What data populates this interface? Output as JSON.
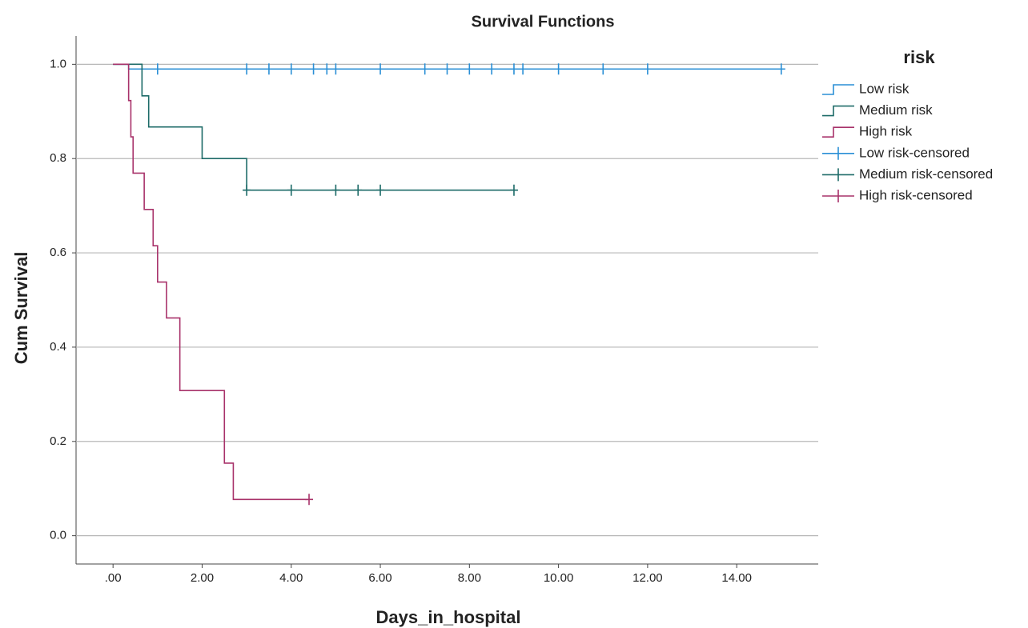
{
  "chart_data": {
    "type": "survival",
    "title": "Survival Functions",
    "x_label": "Days_in_hospital",
    "y_label": "Cum Survival",
    "legend_title": "risk",
    "legend": "right",
    "grid": true,
    "xlim": [
      -0.83,
      15.83
    ],
    "ylim": [
      -0.06,
      1.06
    ],
    "xticks": [
      {
        "value": 0,
        "label": ".00"
      },
      {
        "value": 2,
        "label": "2.00"
      },
      {
        "value": 4,
        "label": "4.00"
      },
      {
        "value": 6,
        "label": "6.00"
      },
      {
        "value": 8,
        "label": "8.00"
      },
      {
        "value": 10,
        "label": "10.00"
      },
      {
        "value": 12,
        "label": "12.00"
      },
      {
        "value": 14,
        "label": "14.00"
      }
    ],
    "yticks": [
      {
        "value": 0,
        "label": "0.0"
      },
      0.2,
      0.4,
      0.6,
      0.8,
      {
        "value": 1,
        "label": "1.0"
      }
    ],
    "series": [
      {
        "name": "Low risk",
        "kind": "step",
        "color": "#2a8fd6",
        "x": [
          0,
          0.35,
          15
        ],
        "values": [
          1.0,
          0.99,
          0.99
        ]
      },
      {
        "name": "Medium risk",
        "kind": "step",
        "color": "#1d6b68",
        "x": [
          0,
          0.65,
          0.8,
          2.0,
          3.0,
          9.0
        ],
        "values": [
          1.0,
          0.933,
          0.867,
          0.8,
          0.733,
          0.733
        ]
      },
      {
        "name": "High risk",
        "kind": "step",
        "color": "#a8326a",
        "x": [
          0,
          0.35,
          0.4,
          0.45,
          0.7,
          0.9,
          1.0,
          1.2,
          1.5,
          2.5,
          2.7,
          4.4
        ],
        "values": [
          1.0,
          0.923,
          0.846,
          0.769,
          0.692,
          0.615,
          0.538,
          0.462,
          0.308,
          0.154,
          0.077,
          0.077
        ]
      },
      {
        "name": "Low risk-censored",
        "kind": "censored",
        "color": "#2a8fd6",
        "x": [
          1.0,
          3.0,
          3.5,
          4.0,
          4.5,
          4.8,
          5.0,
          6.0,
          7.0,
          7.5,
          8.0,
          8.5,
          9.0,
          9.2,
          10.0,
          11.0,
          12.0,
          15.0
        ],
        "values": [
          0.99,
          0.99,
          0.99,
          0.99,
          0.99,
          0.99,
          0.99,
          0.99,
          0.99,
          0.99,
          0.99,
          0.99,
          0.99,
          0.99,
          0.99,
          0.99,
          0.99,
          0.99
        ]
      },
      {
        "name": "Medium risk-censored",
        "kind": "censored",
        "color": "#1d6b68",
        "x": [
          3.0,
          4.0,
          5.0,
          5.5,
          6.0,
          9.0
        ],
        "values": [
          0.733,
          0.733,
          0.733,
          0.733,
          0.733,
          0.733
        ]
      },
      {
        "name": "High risk-censored",
        "kind": "censored",
        "color": "#a8326a",
        "x": [
          4.4
        ],
        "values": [
          0.077
        ]
      }
    ]
  }
}
